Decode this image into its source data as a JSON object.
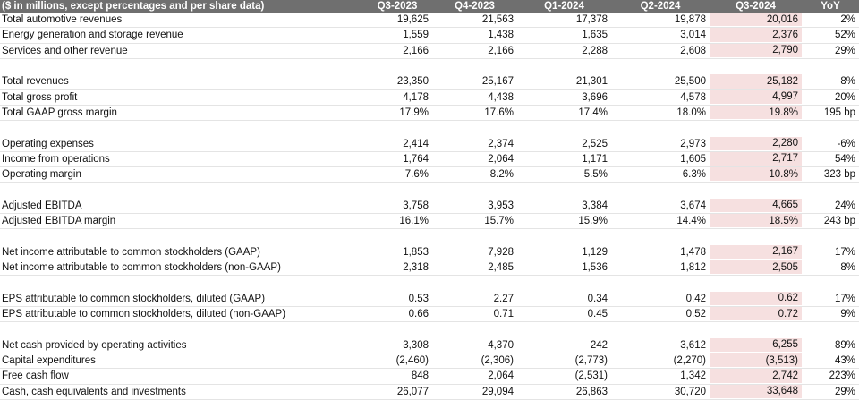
{
  "table": {
    "header": [
      "($ in millions, except percentages and per share data)",
      "Q3-2023",
      "Q4-2023",
      "Q1-2024",
      "Q2-2024",
      "Q3-2024",
      "YoY"
    ],
    "sections": [
      [
        [
          "Total automotive revenues",
          "19,625",
          "21,563",
          "17,378",
          "19,878",
          "20,016",
          "2%"
        ],
        [
          "Energy generation and storage revenue",
          "1,559",
          "1,438",
          "1,635",
          "3,014",
          "2,376",
          "52%"
        ],
        [
          "Services and other revenue",
          "2,166",
          "2,166",
          "2,288",
          "2,608",
          "2,790",
          "29%"
        ]
      ],
      [
        [
          "Total revenues",
          "23,350",
          "25,167",
          "21,301",
          "25,500",
          "25,182",
          "8%"
        ],
        [
          "Total gross profit",
          "4,178",
          "4,438",
          "3,696",
          "4,578",
          "4,997",
          "20%"
        ],
        [
          "Total GAAP gross margin",
          "17.9%",
          "17.6%",
          "17.4%",
          "18.0%",
          "19.8%",
          "195 bp"
        ]
      ],
      [
        [
          "Operating expenses",
          "2,414",
          "2,374",
          "2,525",
          "2,973",
          "2,280",
          "-6%"
        ],
        [
          "Income from operations",
          "1,764",
          "2,064",
          "1,171",
          "1,605",
          "2,717",
          "54%"
        ],
        [
          "Operating margin",
          "7.6%",
          "8.2%",
          "5.5%",
          "6.3%",
          "10.8%",
          "323 bp"
        ]
      ],
      [
        [
          "Adjusted EBITDA",
          "3,758",
          "3,953",
          "3,384",
          "3,674",
          "4,665",
          "24%"
        ],
        [
          "Adjusted EBITDA margin",
          "16.1%",
          "15.7%",
          "15.9%",
          "14.4%",
          "18.5%",
          "243 bp"
        ]
      ],
      [
        [
          "Net income attributable to common stockholders (GAAP)",
          "1,853",
          "7,928",
          "1,129",
          "1,478",
          "2,167",
          "17%"
        ],
        [
          "Net income attributable to common stockholders (non-GAAP)",
          "2,318",
          "2,485",
          "1,536",
          "1,812",
          "2,505",
          "8%"
        ]
      ],
      [
        [
          "EPS attributable to common stockholders, diluted (GAAP)",
          "0.53",
          "2.27",
          "0.34",
          "0.42",
          "0.62",
          "17%"
        ],
        [
          "EPS attributable to common stockholders, diluted (non-GAAP)",
          "0.66",
          "0.71",
          "0.45",
          "0.52",
          "0.72",
          "9%"
        ]
      ],
      [
        [
          "Net cash provided by operating activities",
          "3,308",
          "4,370",
          "242",
          "3,612",
          "6,255",
          "89%"
        ],
        [
          "Capital expenditures",
          "(2,460)",
          "(2,306)",
          "(2,773)",
          "(2,270)",
          "(3,513)",
          "43%"
        ],
        [
          "Free cash flow",
          "848",
          "2,064",
          "(2,531)",
          "1,342",
          "2,742",
          "223%"
        ],
        [
          "Cash, cash equivalents and investments",
          "26,077",
          "29,094",
          "26,863",
          "30,720",
          "33,648",
          "29%"
        ]
      ]
    ]
  }
}
